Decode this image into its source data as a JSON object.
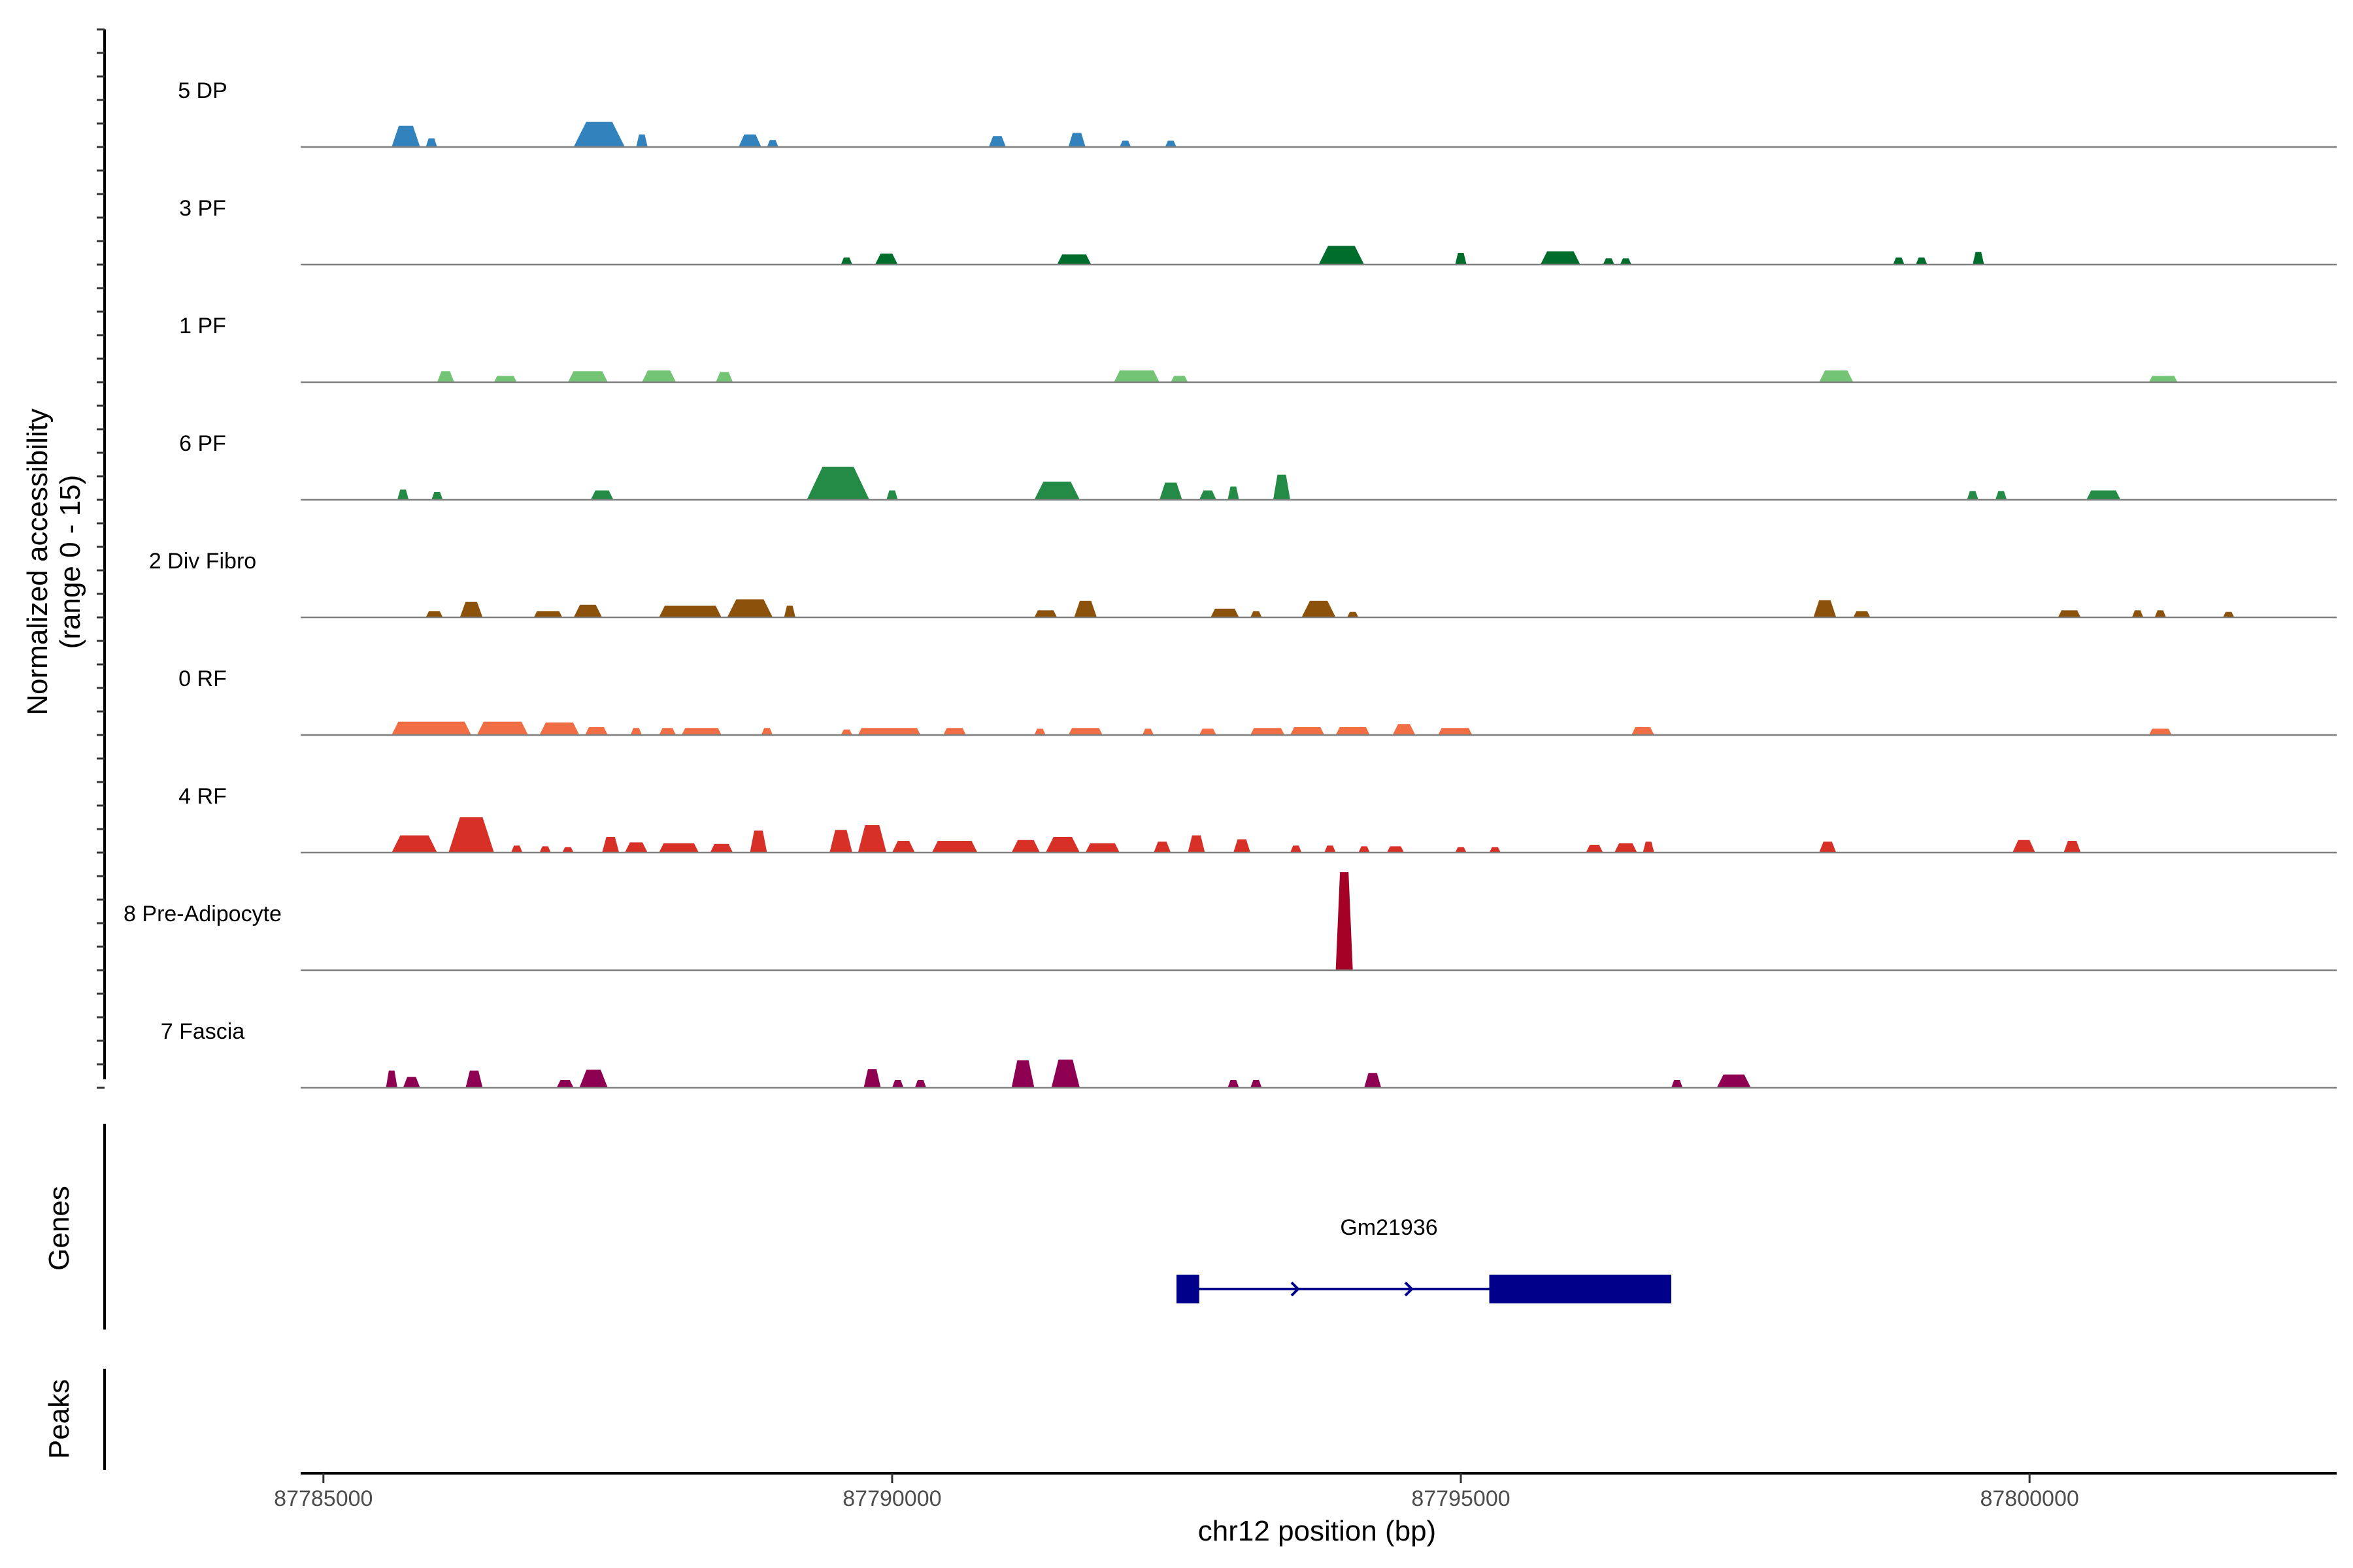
{
  "chart_data": {
    "type": "genome-coverage",
    "title": "",
    "chromosome": "chr12",
    "xlabel": "chr12 position (bp)",
    "ylabel_line1": "Normalized accessibility",
    "ylabel_line2": "(range 0 - 15)",
    "xlim": [
      87784800,
      87802700
    ],
    "ylim": [
      0,
      15
    ],
    "x_ticks": [
      87785000,
      87790000,
      87795000,
      87800000
    ],
    "x_tick_labels": [
      "87785000",
      "87790000",
      "87795000",
      "87800000"
    ],
    "panel_labels": {
      "genes": "Genes",
      "peaks": "Peaks"
    },
    "tracks": [
      {
        "name": "5 DP",
        "color": "#3182bd",
        "peaks": [
          [
            87785600,
            87785850,
            2.7
          ],
          [
            87785900,
            87786000,
            1.1
          ],
          [
            87787200,
            87787650,
            3.2
          ],
          [
            87787750,
            87787850,
            1.6
          ],
          [
            87788650,
            87788850,
            1.6
          ],
          [
            87788900,
            87789000,
            0.9
          ],
          [
            87790850,
            87791000,
            1.4
          ],
          [
            87791550,
            87791700,
            1.8
          ],
          [
            87792000,
            87792100,
            0.8
          ],
          [
            87792400,
            87792500,
            0.8
          ]
        ]
      },
      {
        "name": "3 PF",
        "color": "#006d2c",
        "peaks": [
          [
            87789550,
            87789650,
            0.9
          ],
          [
            87789850,
            87790050,
            1.4
          ],
          [
            87791450,
            87791750,
            1.3
          ],
          [
            87793750,
            87794150,
            2.4
          ],
          [
            87794950,
            87795050,
            1.5
          ],
          [
            87795700,
            87796050,
            1.7
          ],
          [
            87796250,
            87796350,
            0.8
          ],
          [
            87796400,
            87796500,
            0.8
          ],
          [
            87798800,
            87798900,
            0.9
          ],
          [
            87799000,
            87799100,
            0.9
          ],
          [
            87799500,
            87799600,
            1.6
          ]
        ]
      },
      {
        "name": "1 PF",
        "color": "#74c476",
        "peaks": [
          [
            87786000,
            87786150,
            1.4
          ],
          [
            87786500,
            87786700,
            0.8
          ],
          [
            87787150,
            87787500,
            1.4
          ],
          [
            87787800,
            87788100,
            1.5
          ],
          [
            87788450,
            87788600,
            1.3
          ],
          [
            87791950,
            87792350,
            1.5
          ],
          [
            87792450,
            87792600,
            0.8
          ],
          [
            87798150,
            87798450,
            1.5
          ],
          [
            87801050,
            87801300,
            0.8
          ]
        ]
      },
      {
        "name": "6 PF",
        "color": "#238b45",
        "peaks": [
          [
            87785650,
            87785750,
            1.3
          ],
          [
            87785950,
            87786050,
            1.0
          ],
          [
            87787350,
            87787550,
            1.2
          ],
          [
            87789250,
            87789800,
            4.2
          ],
          [
            87789950,
            87790050,
            1.2
          ],
          [
            87791250,
            87791650,
            2.3
          ],
          [
            87792350,
            87792550,
            2.2
          ],
          [
            87792700,
            87792850,
            1.2
          ],
          [
            87792950,
            87793050,
            1.7
          ],
          [
            87793350,
            87793500,
            3.2
          ],
          [
            87799450,
            87799550,
            1.1
          ],
          [
            87799700,
            87799800,
            1.1
          ],
          [
            87800500,
            87800800,
            1.2
          ]
        ]
      },
      {
        "name": "2 Div Fibro",
        "color": "#8c510a",
        "peaks": [
          [
            87785900,
            87786050,
            0.8
          ],
          [
            87786200,
            87786400,
            2.0
          ],
          [
            87786850,
            87787100,
            0.8
          ],
          [
            87787200,
            87787450,
            1.6
          ],
          [
            87787950,
            87788500,
            1.5
          ],
          [
            87788550,
            87788950,
            2.3
          ],
          [
            87789050,
            87789150,
            1.5
          ],
          [
            87791250,
            87791450,
            0.9
          ],
          [
            87791600,
            87791800,
            2.1
          ],
          [
            87792800,
            87793050,
            1.1
          ],
          [
            87793150,
            87793250,
            0.8
          ],
          [
            87793600,
            87793900,
            2.1
          ],
          [
            87794000,
            87794100,
            0.7
          ],
          [
            87798100,
            87798300,
            2.2
          ],
          [
            87798450,
            87798600,
            0.8
          ],
          [
            87800250,
            87800450,
            0.9
          ],
          [
            87800900,
            87801000,
            0.9
          ],
          [
            87801100,
            87801200,
            0.9
          ],
          [
            87801700,
            87801800,
            0.7
          ]
        ]
      },
      {
        "name": "0 RF",
        "color": "#f16d43",
        "peaks": [
          [
            87785600,
            87786300,
            1.7
          ],
          [
            87786350,
            87786800,
            1.7
          ],
          [
            87786900,
            87787250,
            1.6
          ],
          [
            87787300,
            87787500,
            1.0
          ],
          [
            87787700,
            87787800,
            0.9
          ],
          [
            87787950,
            87788100,
            0.9
          ],
          [
            87788150,
            87788500,
            0.9
          ],
          [
            87788850,
            87788950,
            0.9
          ],
          [
            87789550,
            87789650,
            0.7
          ],
          [
            87789700,
            87790250,
            0.9
          ],
          [
            87790450,
            87790650,
            0.9
          ],
          [
            87791250,
            87791350,
            0.8
          ],
          [
            87791550,
            87791850,
            0.9
          ],
          [
            87792200,
            87792300,
            0.8
          ],
          [
            87792700,
            87792850,
            0.8
          ],
          [
            87793150,
            87793450,
            0.9
          ],
          [
            87793500,
            87793800,
            1.0
          ],
          [
            87793900,
            87794200,
            1.0
          ],
          [
            87794400,
            87794600,
            1.4
          ],
          [
            87794800,
            87795100,
            0.9
          ],
          [
            87796500,
            87796700,
            1.0
          ],
          [
            87801050,
            87801250,
            0.8
          ]
        ]
      },
      {
        "name": "4 RF",
        "color": "#d73027",
        "peaks": [
          [
            87785600,
            87786000,
            2.2
          ],
          [
            87786100,
            87786500,
            4.5
          ],
          [
            87786650,
            87786750,
            0.9
          ],
          [
            87786900,
            87787000,
            0.8
          ],
          [
            87787100,
            87787200,
            0.7
          ],
          [
            87787450,
            87787600,
            2.0
          ],
          [
            87787650,
            87787850,
            1.3
          ],
          [
            87787950,
            87788300,
            1.2
          ],
          [
            87788400,
            87788600,
            1.1
          ],
          [
            87788750,
            87788900,
            2.8
          ],
          [
            87789450,
            87789650,
            2.9
          ],
          [
            87789700,
            87789950,
            3.5
          ],
          [
            87790000,
            87790200,
            1.5
          ],
          [
            87790350,
            87790750,
            1.5
          ],
          [
            87791050,
            87791300,
            1.6
          ],
          [
            87791350,
            87791650,
            2.0
          ],
          [
            87791700,
            87792000,
            1.2
          ],
          [
            87792300,
            87792450,
            1.4
          ],
          [
            87792600,
            87792750,
            2.2
          ],
          [
            87793000,
            87793150,
            1.7
          ],
          [
            87793500,
            87793600,
            0.9
          ],
          [
            87793800,
            87793900,
            0.9
          ],
          [
            87794100,
            87794200,
            0.8
          ],
          [
            87794350,
            87794500,
            0.8
          ],
          [
            87794950,
            87795050,
            0.7
          ],
          [
            87795250,
            87795350,
            0.7
          ],
          [
            87796100,
            87796250,
            1.0
          ],
          [
            87796350,
            87796550,
            1.2
          ],
          [
            87796600,
            87796700,
            1.4
          ],
          [
            87798150,
            87798300,
            1.4
          ],
          [
            87799850,
            87800050,
            1.6
          ],
          [
            87800300,
            87800450,
            1.5
          ]
        ]
      },
      {
        "name": "8 Pre-Adipocyte",
        "color": "#a50026",
        "peaks": [
          [
            87793900,
            87794050,
            12.5
          ]
        ]
      },
      {
        "name": "7 Fascia",
        "color": "#8e0152",
        "peaks": [
          [
            87785550,
            87785650,
            2.2
          ],
          [
            87785700,
            87785850,
            1.4
          ],
          [
            87786250,
            87786400,
            2.2
          ],
          [
            87787050,
            87787200,
            1.0
          ],
          [
            87787250,
            87787500,
            2.3
          ],
          [
            87789750,
            87789900,
            2.4
          ],
          [
            87790000,
            87790100,
            1.0
          ],
          [
            87790200,
            87790300,
            1.0
          ],
          [
            87791050,
            87791250,
            3.5
          ],
          [
            87791400,
            87791650,
            3.6
          ],
          [
            87792950,
            87793050,
            1.0
          ],
          [
            87793150,
            87793250,
            1.0
          ],
          [
            87794150,
            87794300,
            1.9
          ],
          [
            87796850,
            87796950,
            1.0
          ],
          [
            87797250,
            87797550,
            1.7
          ]
        ]
      }
    ],
    "gene": {
      "name": "Gm21936",
      "color": "#00008b",
      "start": 87792500,
      "end": 87796850,
      "strand": "+",
      "exons": [
        [
          87792500,
          87792700
        ],
        [
          87795250,
          87796850
        ]
      ]
    }
  }
}
